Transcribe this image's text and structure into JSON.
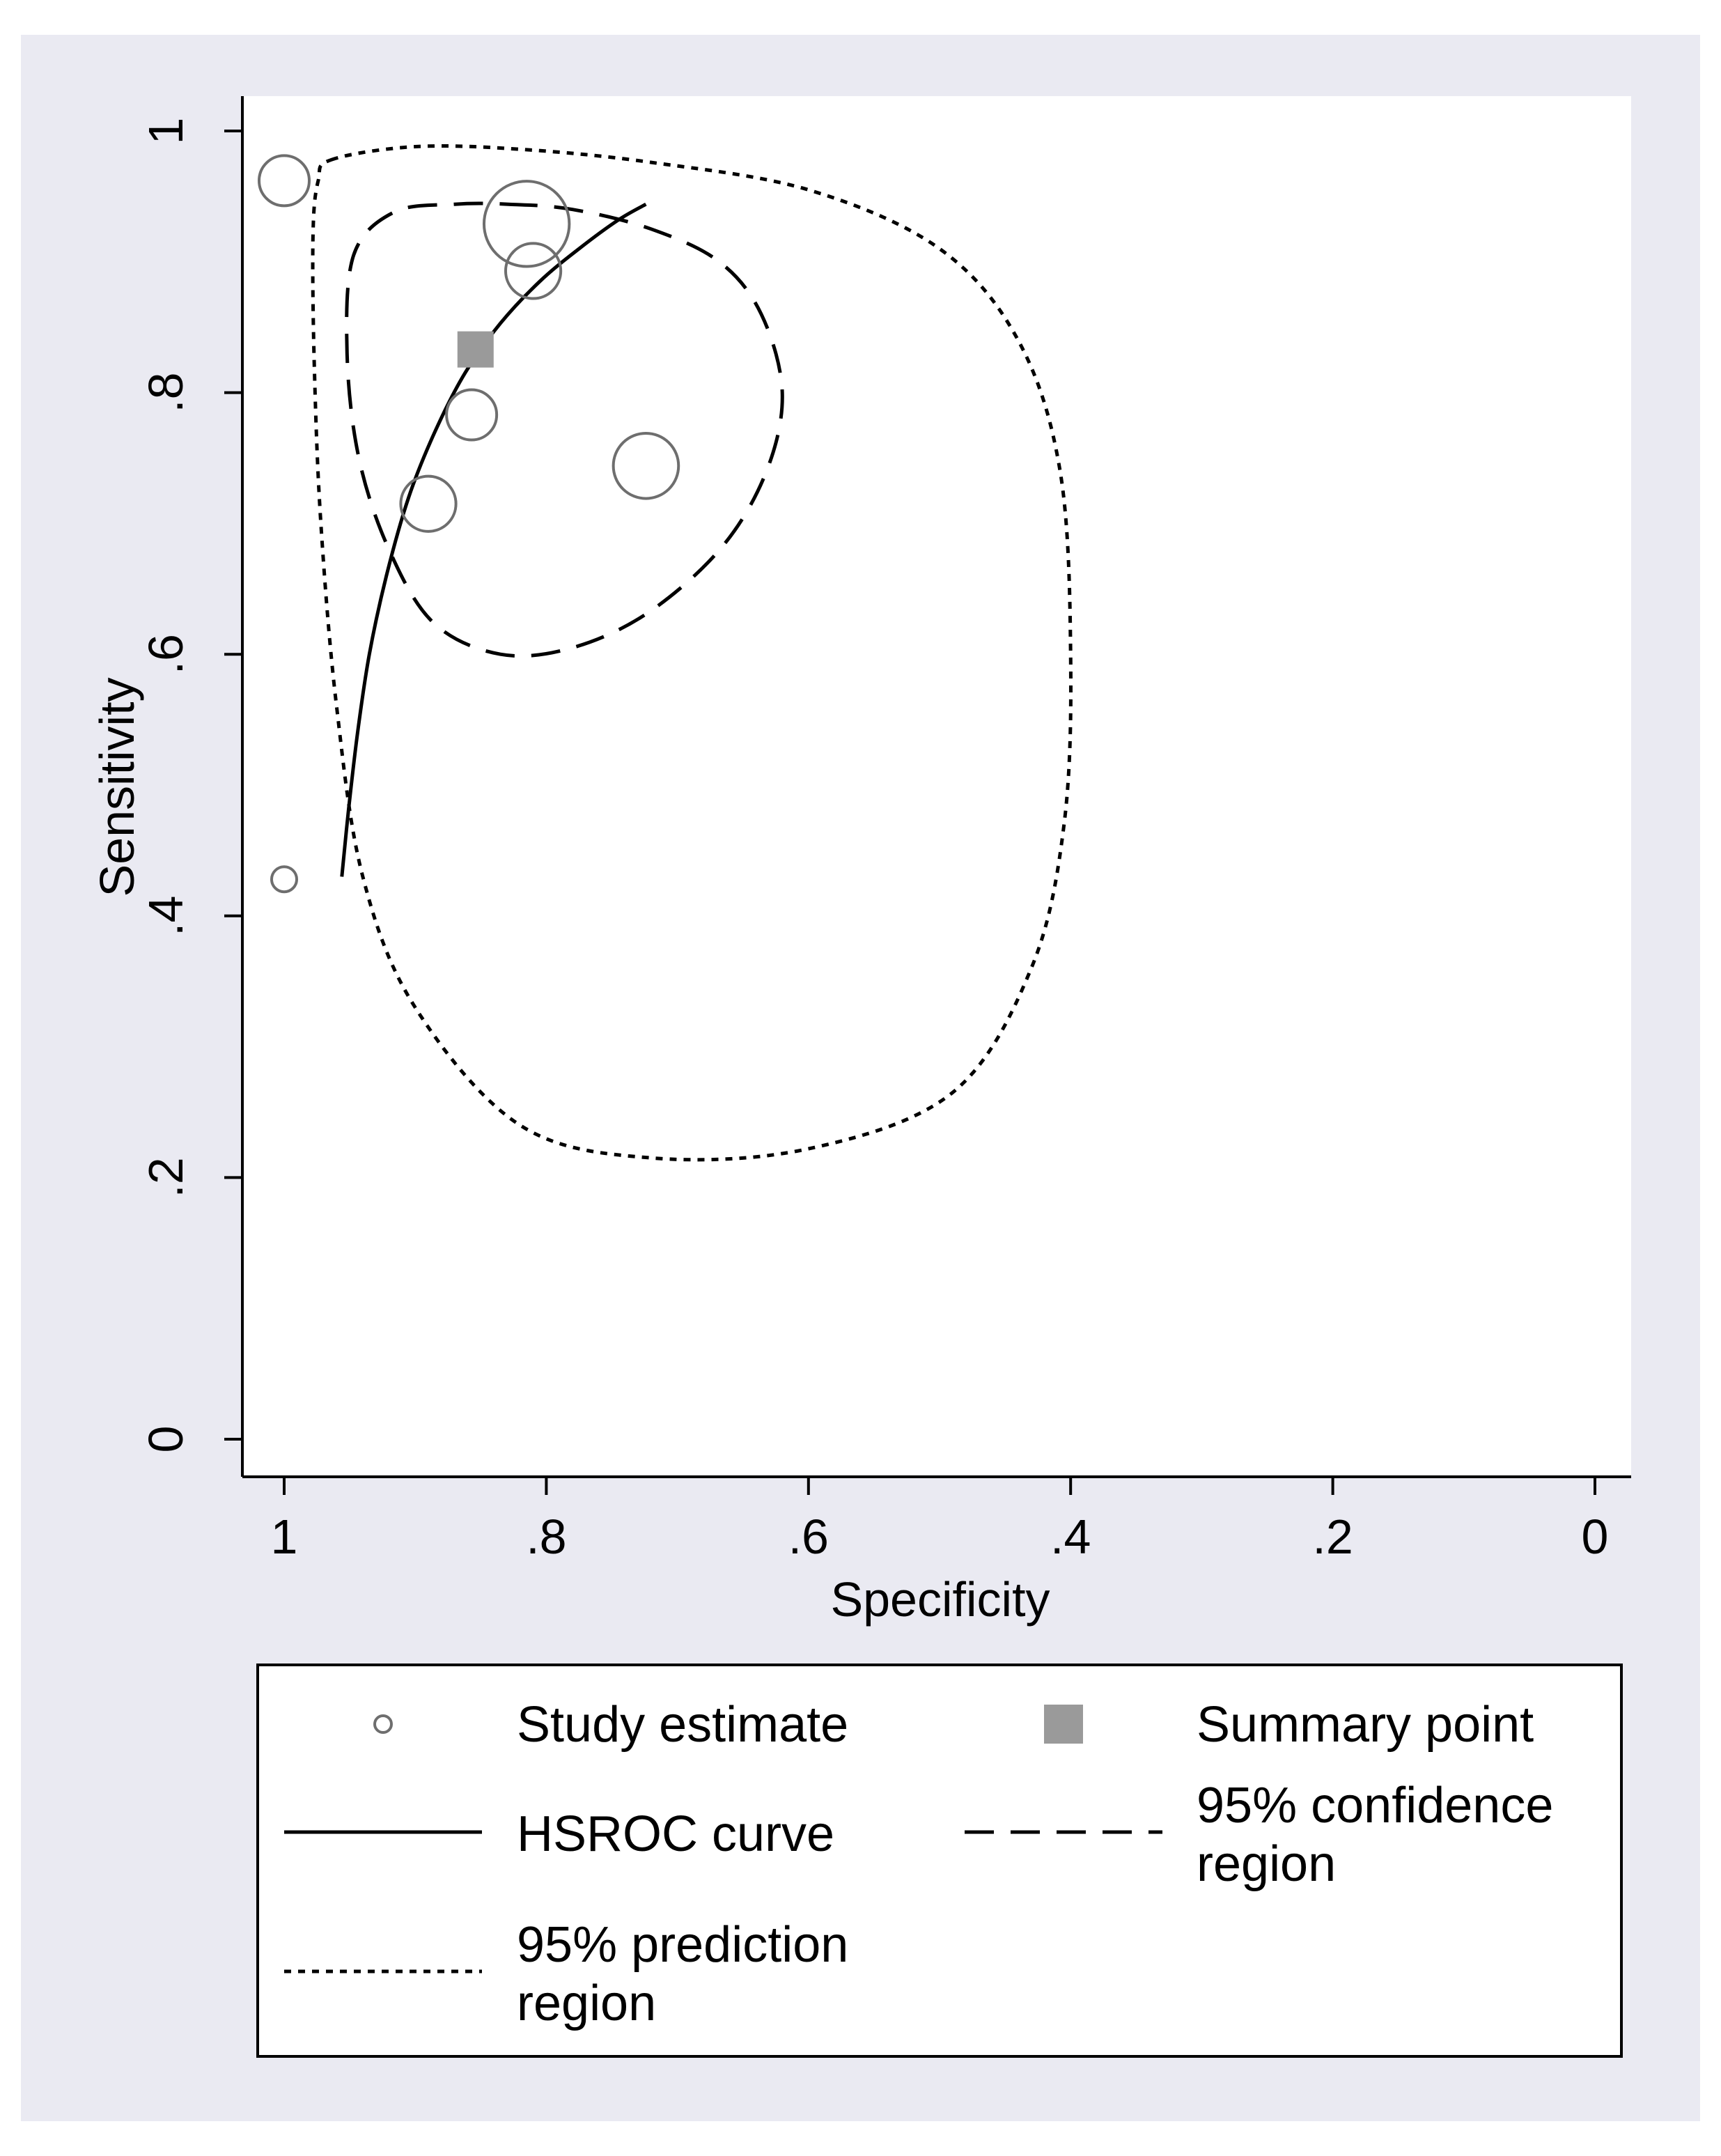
{
  "chart_data": {
    "type": "scatter",
    "xlabel": "Specificity",
    "ylabel": "Sensitivity",
    "xlim": [
      1,
      0
    ],
    "ylim": [
      0,
      1
    ],
    "x_axis_reversed": true,
    "x_ticks": [
      {
        "value": 1,
        "label": "1"
      },
      {
        "value": 0.8,
        "label": ".8"
      },
      {
        "value": 0.6,
        "label": ".6"
      },
      {
        "value": 0.4,
        "label": ".4"
      },
      {
        "value": 0.2,
        "label": ".2"
      },
      {
        "value": 0,
        "label": "0"
      }
    ],
    "y_ticks": [
      {
        "value": 0,
        "label": "0"
      },
      {
        "value": 0.2,
        "label": ".2"
      },
      {
        "value": 0.4,
        "label": ".4"
      },
      {
        "value": 0.6,
        "label": ".6"
      },
      {
        "value": 0.8,
        "label": ".8"
      },
      {
        "value": 1,
        "label": "1"
      }
    ],
    "grid": false,
    "legend_position": "bottom",
    "study_estimates": [
      {
        "specificity": 1.0,
        "sensitivity": 0.962,
        "weight": 1.0
      },
      {
        "specificity": 0.815,
        "sensitivity": 0.929,
        "weight": 1.7
      },
      {
        "specificity": 0.81,
        "sensitivity": 0.893,
        "weight": 1.1
      },
      {
        "specificity": 0.857,
        "sensitivity": 0.783,
        "weight": 1.0
      },
      {
        "specificity": 0.89,
        "sensitivity": 0.715,
        "weight": 1.1
      },
      {
        "specificity": 0.724,
        "sensitivity": 0.744,
        "weight": 1.3
      },
      {
        "specificity": 1.0,
        "sensitivity": 0.428,
        "weight": 0.5
      }
    ],
    "summary_point": {
      "specificity": 0.854,
      "sensitivity": 0.833
    },
    "hsroc_curve": [
      [
        0.956,
        0.43
      ],
      [
        0.951,
        0.48
      ],
      [
        0.944,
        0.54
      ],
      [
        0.935,
        0.6
      ],
      [
        0.922,
        0.66
      ],
      [
        0.905,
        0.72
      ],
      [
        0.885,
        0.77
      ],
      [
        0.862,
        0.815
      ],
      [
        0.835,
        0.853
      ],
      [
        0.805,
        0.885
      ],
      [
        0.775,
        0.91
      ],
      [
        0.745,
        0.932
      ],
      [
        0.724,
        0.944
      ]
    ],
    "confidence_region": [
      [
        0.829,
        0.944
      ],
      [
        0.78,
        0.94
      ],
      [
        0.72,
        0.925
      ],
      [
        0.668,
        0.9
      ],
      [
        0.636,
        0.86
      ],
      [
        0.62,
        0.8
      ],
      [
        0.632,
        0.74
      ],
      [
        0.666,
        0.682
      ],
      [
        0.722,
        0.632
      ],
      [
        0.78,
        0.605
      ],
      [
        0.835,
        0.6
      ],
      [
        0.886,
        0.624
      ],
      [
        0.92,
        0.68
      ],
      [
        0.943,
        0.75
      ],
      [
        0.952,
        0.83
      ],
      [
        0.947,
        0.905
      ],
      [
        0.916,
        0.938
      ],
      [
        0.87,
        0.944
      ]
    ],
    "prediction_region": [
      [
        0.964,
        0.978
      ],
      [
        0.9,
        0.988
      ],
      [
        0.82,
        0.986
      ],
      [
        0.72,
        0.976
      ],
      [
        0.6,
        0.955
      ],
      [
        0.5,
        0.91
      ],
      [
        0.44,
        0.84
      ],
      [
        0.408,
        0.74
      ],
      [
        0.4,
        0.6
      ],
      [
        0.405,
        0.47
      ],
      [
        0.43,
        0.36
      ],
      [
        0.49,
        0.265
      ],
      [
        0.6,
        0.222
      ],
      [
        0.72,
        0.215
      ],
      [
        0.82,
        0.24
      ],
      [
        0.9,
        0.33
      ],
      [
        0.94,
        0.43
      ],
      [
        0.96,
        0.56
      ],
      [
        0.972,
        0.7
      ],
      [
        0.977,
        0.82
      ],
      [
        0.978,
        0.92
      ],
      [
        0.974,
        0.962
      ]
    ],
    "legend": [
      {
        "key": "study",
        "label_lines": [
          "Study estimate"
        ]
      },
      {
        "key": "summary",
        "label_lines": [
          "Summary point"
        ]
      },
      {
        "key": "hsroc",
        "label_lines": [
          "HSROC curve"
        ]
      },
      {
        "key": "confidence",
        "label_lines": [
          "95% confidence",
          "region"
        ]
      },
      {
        "key": "prediction",
        "label_lines": [
          "95% prediction",
          "region"
        ]
      }
    ],
    "colors": {
      "background": "#eaeaf2",
      "plot": "#ffffff",
      "summary": "#9a9a9a",
      "line": "#000000",
      "marker": "#6e6e6e"
    }
  }
}
